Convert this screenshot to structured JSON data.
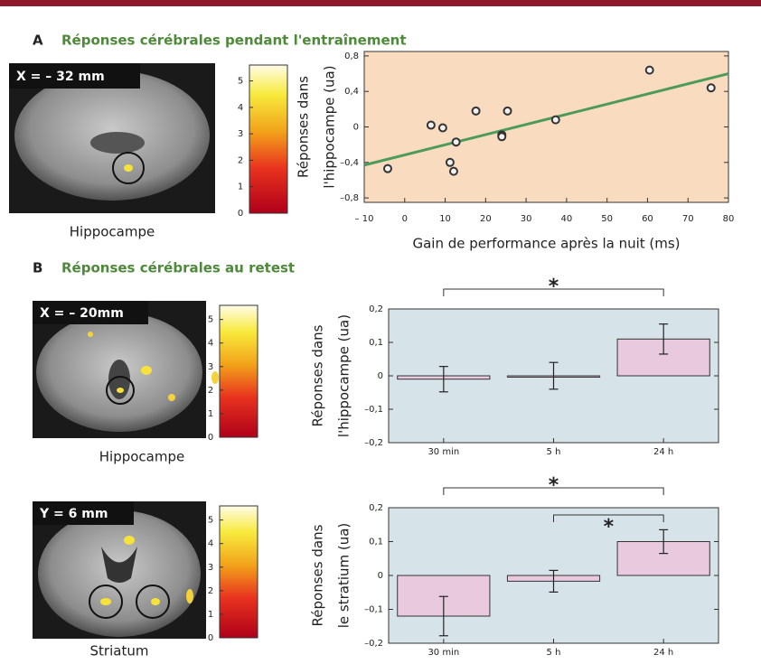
{
  "panels": [
    {
      "letter": "A",
      "title": "Réponses cérébrales pendant l'entraînement"
    },
    {
      "letter": "B",
      "title": "Réponses cérébrales au retest"
    }
  ],
  "images": [
    {
      "label": "X = – 32 mm",
      "caption": "Hippocampe",
      "colorbar": {
        "ylim": [
          0,
          5.6
        ],
        "yticks": [
          0,
          1,
          2,
          3,
          4,
          5
        ]
      }
    },
    {
      "label": "X = – 20mm",
      "caption": "Hippocampe",
      "colorbar": {
        "ylim": [
          0,
          5.6
        ],
        "yticks": [
          0,
          1,
          2,
          3,
          4,
          5
        ]
      }
    },
    {
      "label": "Y = 6 mm",
      "caption": "Striatum",
      "colorbar": {
        "ylim": [
          0,
          5.6
        ],
        "yticks": [
          0,
          1,
          2,
          3,
          4,
          5
        ]
      }
    }
  ],
  "chart_data": [
    {
      "type": "scatter",
      "xlabel": "Gain de performance après la nuit (ms)",
      "ylabel": [
        "Réponses dans",
        "l'hippocampe (ua)"
      ],
      "background": "#f9dcc0",
      "xlim": [
        -10,
        80
      ],
      "ylim": [
        -0.85,
        0.85
      ],
      "xticks": [
        {
          "value": -10,
          "label": "– 10"
        },
        0,
        10,
        20,
        30,
        40,
        50,
        60,
        70,
        80
      ],
      "yticks": [
        {
          "value": 0.8,
          "label": "0,8"
        },
        {
          "value": 0.4,
          "label": "0,4"
        },
        0,
        {
          "value": -0.4,
          "label": "–0,4"
        },
        {
          "value": -0.8,
          "label": "–0,8"
        }
      ],
      "series": [
        {
          "kind": "points",
          "color": "#333333",
          "x": [
            -4.2,
            6.5,
            9.4,
            12.7,
            11.2,
            12.1,
            17.6,
            24,
            24,
            25.4,
            37.3,
            60.5,
            75.7
          ],
          "values": [
            -0.47,
            0.02,
            -0.01,
            -0.17,
            -0.4,
            -0.5,
            0.18,
            -0.09,
            -0.11,
            0.18,
            0.08,
            0.64,
            0.44
          ]
        },
        {
          "kind": "fit",
          "color": "#4e9a5a",
          "x": [
            -10,
            80
          ],
          "values": [
            -0.43,
            0.6
          ]
        }
      ]
    },
    {
      "type": "bar",
      "ylabel": [
        "Réponses dans",
        "l'hippocampe (ua)"
      ],
      "background": "#d6e4ea",
      "color": "#e8c9de",
      "categories": [
        "30 min",
        "5 h",
        "24 h"
      ],
      "values": [
        -0.01,
        0,
        0.11
      ],
      "errors": [
        0.038,
        0.04,
        0.045
      ],
      "ylim": [
        -0.2,
        0.2
      ],
      "yticks": [
        {
          "value": 0.2,
          "label": "0,2"
        },
        {
          "value": 0.1,
          "label": "0,1"
        },
        0,
        {
          "value": -0.1,
          "label": "–0,1"
        },
        {
          "value": -0.2,
          "label": "–0,2"
        }
      ],
      "significance": [
        {
          "label": "*",
          "between": [
            "30 min",
            "24 h"
          ]
        }
      ]
    },
    {
      "type": "bar",
      "ylabel": [
        "Réponses dans",
        "le stratium (ua)"
      ],
      "background": "#d6e4ea",
      "color": "#e8c9de",
      "categories": [
        "30 min",
        "5 h",
        "24 h"
      ],
      "values": [
        -0.12,
        -0.017,
        0.1
      ],
      "errors": [
        0.058,
        0.032,
        0.035
      ],
      "ylim": [
        -0.2,
        0.2
      ],
      "yticks": [
        {
          "value": 0.2,
          "label": "0,2"
        },
        {
          "value": 0.1,
          "label": "0,1"
        },
        0,
        {
          "value": -0.1,
          "label": "–0,1"
        },
        {
          "value": -0.2,
          "label": "–0,2"
        }
      ],
      "significance": [
        {
          "label": "*",
          "between": [
            "30 min",
            "24 h"
          ]
        },
        {
          "label": "*",
          "between": [
            "5 h",
            "24 h"
          ]
        }
      ]
    }
  ]
}
